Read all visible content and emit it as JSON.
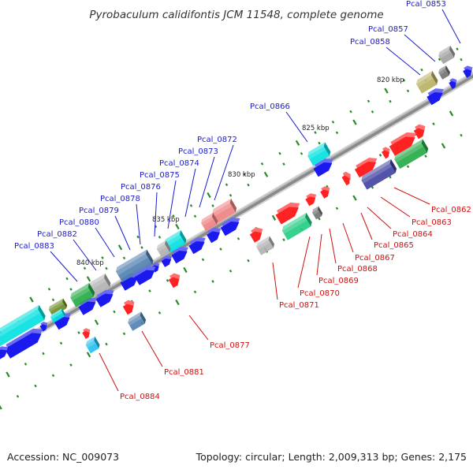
{
  "title": "Pyrobaculum calidifontis JCM 11548, complete genome",
  "footer": {
    "accession": "Accession: NC_009073",
    "stats": "Topology: circular; Length: 2,009,313 bp; Genes: 2,175"
  },
  "colors": {
    "forward_label": "#1a1acc",
    "reverse_label": "#cc1111",
    "backbone": "#8a8a8a",
    "tick": "#2a8a2a"
  },
  "kbp_marks": [
    "820 kbp",
    "825 kbp",
    "830 kbp",
    "835 kbp",
    "840 kbp"
  ],
  "genes": [
    {
      "id": "Pcal_0853",
      "strand": "forward",
      "color": "#a0a0a0"
    },
    {
      "id": "Pcal_0857",
      "strand": "forward",
      "color": "#707070"
    },
    {
      "id": "Pcal_0858",
      "strand": "forward",
      "color": "#b8b060"
    },
    {
      "id": "Pcal_0862",
      "strand": "reverse",
      "color": "#22aa44"
    },
    {
      "id": "Pcal_0863",
      "strand": "reverse",
      "color": "#ff2222"
    },
    {
      "id": "Pcal_0864",
      "strand": "reverse",
      "color": "#4040a0"
    },
    {
      "id": "Pcal_0865",
      "strand": "reverse",
      "color": "#ff2222"
    },
    {
      "id": "Pcal_0866",
      "strand": "forward",
      "color": "#00e0e0"
    },
    {
      "id": "Pcal_0867",
      "strand": "reverse",
      "color": "#ff2222"
    },
    {
      "id": "Pcal_0868",
      "strand": "reverse",
      "color": "#ff2222"
    },
    {
      "id": "Pcal_0869",
      "strand": "reverse",
      "color": "#707070"
    },
    {
      "id": "Pcal_0870",
      "strand": "reverse",
      "color": "#ff2222"
    },
    {
      "id": "Pcal_0871",
      "strand": "reverse",
      "color": "#20cc80"
    },
    {
      "id": "Pcal_0872",
      "strand": "forward",
      "color": "#f08080"
    },
    {
      "id": "Pcal_0873",
      "strand": "forward",
      "color": "#f08080"
    },
    {
      "id": "Pcal_0874",
      "strand": "forward",
      "color": "#00e0e0"
    },
    {
      "id": "Pcal_0875",
      "strand": "forward",
      "color": "#b0b0b0"
    },
    {
      "id": "Pcal_0876",
      "strand": "forward",
      "color": "#1a1aee"
    },
    {
      "id": "Pcal_0877",
      "strand": "reverse",
      "color": "#ff2222"
    },
    {
      "id": "Pcal_0878",
      "strand": "forward",
      "color": "#5080b0"
    },
    {
      "id": "Pcal_0879",
      "strand": "forward",
      "color": "#1a1aee"
    },
    {
      "id": "Pcal_0880",
      "strand": "forward",
      "color": "#b0b0b0"
    },
    {
      "id": "Pcal_0881",
      "strand": "reverse",
      "color": "#5080b0"
    },
    {
      "id": "Pcal_0882",
      "strand": "forward",
      "color": "#22aa44"
    },
    {
      "id": "Pcal_0883",
      "strand": "forward",
      "color": "#00e0e0"
    },
    {
      "id": "Pcal_0884",
      "strand": "reverse",
      "color": "#20c0f0"
    }
  ]
}
